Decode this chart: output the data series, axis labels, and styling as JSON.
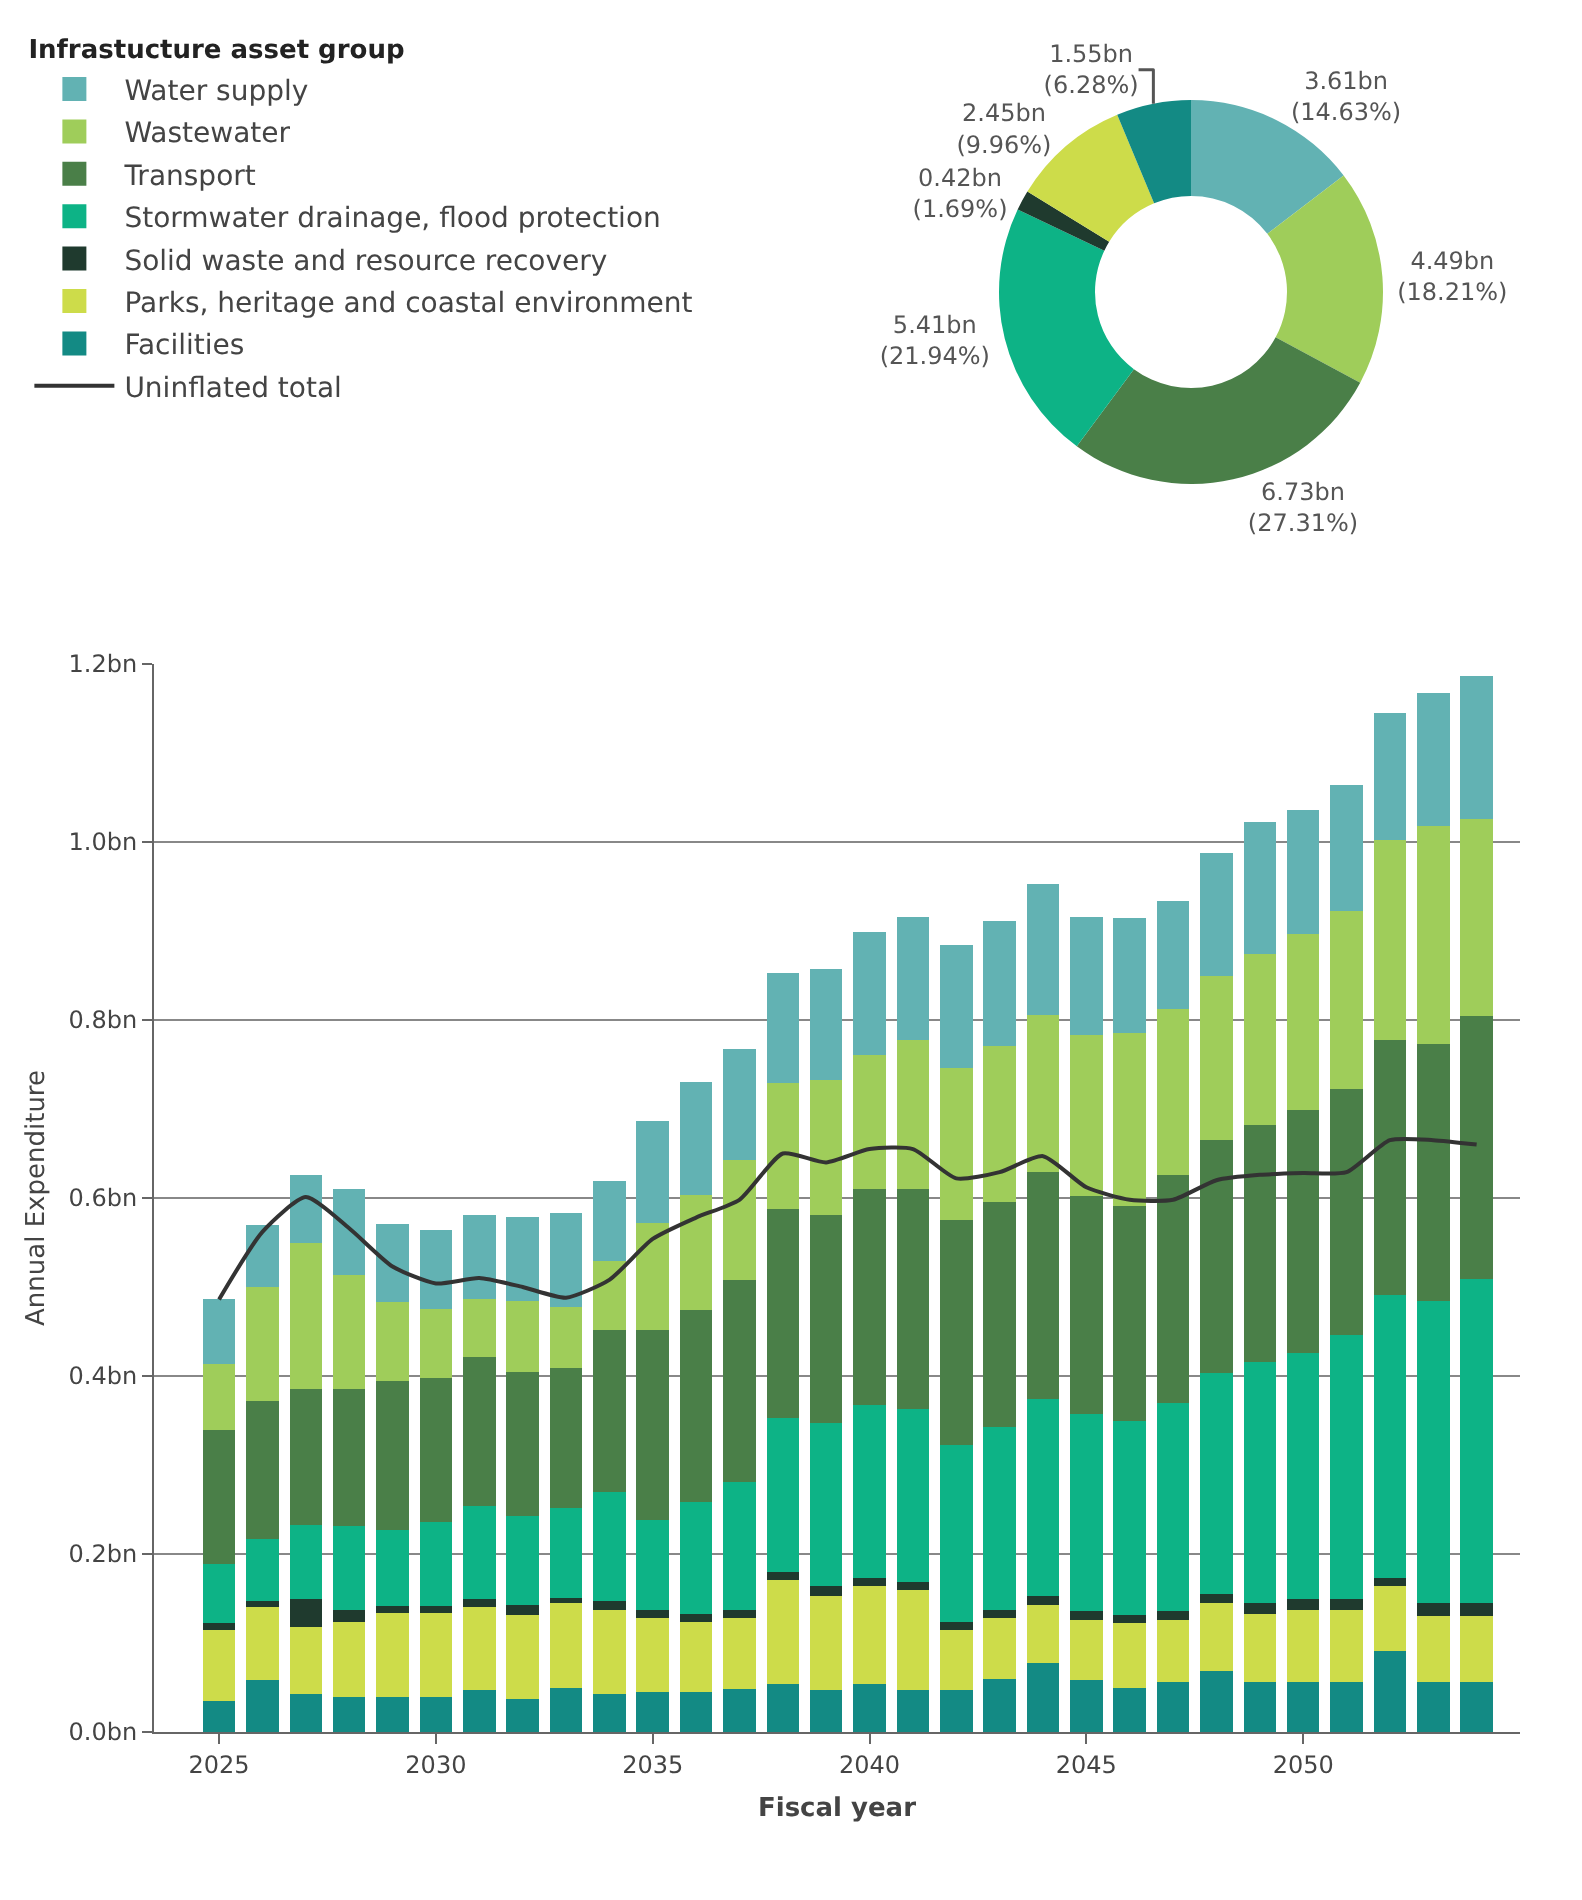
{
  "chart_data": [
    {
      "type": "donut",
      "categories": [
        null,
        null,
        null,
        null,
        null,
        null,
        null
      ],
      "values": [
        14.63,
        18.21,
        27.31,
        21.94,
        1.69,
        9.96,
        6.28
      ],
      "colors": [
        "#62b2b3",
        "#9fcd5a",
        "#4a7f48",
        "#0db386",
        "#1f3a2e",
        "#cddc4a",
        "#138a84"
      ],
      "value_labels": [
        "3.61bn\n(14.63%)",
        "4.49bn\n(18.21%)",
        "6.73bn\n(27.31%)",
        "5.41bn\n(21.94%)",
        "0.42bn\n(1.69%)",
        "2.45bn\n(9.96%)",
        "1.55bn\n(6.28%)"
      ]
    },
    {
      "type": "bar",
      "stacked": true,
      "xlabel": "Fiscal year",
      "ylabel": "Annual Expenditure",
      "legend_title": "Infrastucture asset group",
      "legend": "top left",
      "grid": "y",
      "x": [
        2025,
        2026,
        2027,
        2028,
        2029,
        2030,
        2031,
        2032,
        2033,
        2034,
        2035,
        2036,
        2037,
        2038,
        2039,
        2040,
        2041,
        2042,
        2043,
        2044,
        2045,
        2046,
        2047,
        2048,
        2049,
        2050,
        2051,
        2052,
        2053,
        2054
      ],
      "xlim": [
        2023.5,
        2055
      ],
      "xticks": [
        2025,
        2030,
        2035,
        2040,
        2045,
        2050
      ],
      "ylim": [
        0,
        1.2
      ],
      "yticks": [
        {
          "value": 0,
          "label": "0.0bn"
        },
        {
          "value": 0.2,
          "label": "0.2bn"
        },
        {
          "value": 0.4,
          "label": "0.4bn"
        },
        {
          "value": 0.6,
          "label": "0.6bn"
        },
        {
          "value": 0.8,
          "label": "0.8bn"
        },
        {
          "value": 1.0,
          "label": "1.0bn"
        },
        {
          "value": 1.2,
          "label": "1.2bn"
        }
      ],
      "series": [
        {
          "name": "Uninflated total",
          "type": "line",
          "color": "#333333",
          "values": [
            0.486,
            0.562,
            0.601,
            0.566,
            0.523,
            0.504,
            0.51,
            0.5,
            0.488,
            0.508,
            0.554,
            0.578,
            0.598,
            0.65,
            0.64,
            0.655,
            0.655,
            0.622,
            0.629,
            0.647,
            0.612,
            0.598,
            0.598,
            0.62,
            0.626,
            0.628,
            0.629,
            0.665,
            0.665,
            0.66
          ]
        },
        {
          "name": "Facilities",
          "color": "#138a84",
          "values": [
            0.035,
            0.058,
            0.043,
            0.039,
            0.039,
            0.039,
            0.047,
            0.037,
            0.05,
            0.043,
            0.045,
            0.045,
            0.048,
            0.054,
            0.047,
            0.054,
            0.047,
            0.047,
            0.06,
            0.078,
            0.058,
            0.05,
            0.056,
            0.068,
            0.056,
            0.056,
            0.056,
            0.091,
            0.056,
            0.056
          ]
        },
        {
          "name": "Parks, heritage and coastal environment",
          "color": "#cddc4a",
          "values": [
            0.08,
            0.082,
            0.075,
            0.085,
            0.095,
            0.095,
            0.094,
            0.095,
            0.095,
            0.094,
            0.083,
            0.079,
            0.08,
            0.117,
            0.106,
            0.11,
            0.113,
            0.068,
            0.068,
            0.065,
            0.068,
            0.072,
            0.07,
            0.077,
            0.077,
            0.081,
            0.081,
            0.073,
            0.074,
            0.074
          ]
        },
        {
          "name": "Solid waste and resource recovery",
          "color": "#1f3a2e",
          "values": [
            0.008,
            0.007,
            0.031,
            0.013,
            0.008,
            0.008,
            0.008,
            0.011,
            0.006,
            0.01,
            0.009,
            0.009,
            0.009,
            0.009,
            0.011,
            0.009,
            0.009,
            0.009,
            0.009,
            0.01,
            0.01,
            0.01,
            0.01,
            0.01,
            0.012,
            0.012,
            0.012,
            0.009,
            0.015,
            0.015
          ]
        },
        {
          "name": "Stormwater drainage, flood protection",
          "color": "#0db386",
          "values": [
            0.066,
            0.07,
            0.084,
            0.094,
            0.085,
            0.094,
            0.105,
            0.1,
            0.101,
            0.123,
            0.101,
            0.126,
            0.144,
            0.173,
            0.183,
            0.194,
            0.194,
            0.198,
            0.206,
            0.221,
            0.221,
            0.218,
            0.234,
            0.248,
            0.271,
            0.277,
            0.297,
            0.318,
            0.339,
            0.364
          ]
        },
        {
          "name": "Transport",
          "color": "#4a7f48",
          "values": [
            0.15,
            0.155,
            0.152,
            0.154,
            0.167,
            0.162,
            0.167,
            0.162,
            0.157,
            0.182,
            0.214,
            0.215,
            0.227,
            0.235,
            0.234,
            0.243,
            0.247,
            0.253,
            0.252,
            0.255,
            0.245,
            0.241,
            0.256,
            0.262,
            0.266,
            0.273,
            0.276,
            0.286,
            0.289,
            0.295
          ]
        },
        {
          "name": "Wastewater",
          "color": "#9fcd5a",
          "values": [
            0.075,
            0.128,
            0.164,
            0.129,
            0.089,
            0.077,
            0.065,
            0.079,
            0.068,
            0.077,
            0.12,
            0.129,
            0.135,
            0.141,
            0.152,
            0.151,
            0.167,
            0.171,
            0.176,
            0.177,
            0.181,
            0.194,
            0.186,
            0.185,
            0.192,
            0.198,
            0.2,
            0.225,
            0.245,
            0.222
          ]
        },
        {
          "name": "Water supply",
          "color": "#62b2b3",
          "values": [
            0.072,
            0.07,
            0.077,
            0.096,
            0.088,
            0.089,
            0.095,
            0.095,
            0.106,
            0.09,
            0.114,
            0.127,
            0.124,
            0.124,
            0.124,
            0.138,
            0.139,
            0.138,
            0.14,
            0.147,
            0.133,
            0.13,
            0.122,
            0.138,
            0.148,
            0.139,
            0.142,
            0.143,
            0.149,
            0.16
          ]
        }
      ]
    }
  ]
}
